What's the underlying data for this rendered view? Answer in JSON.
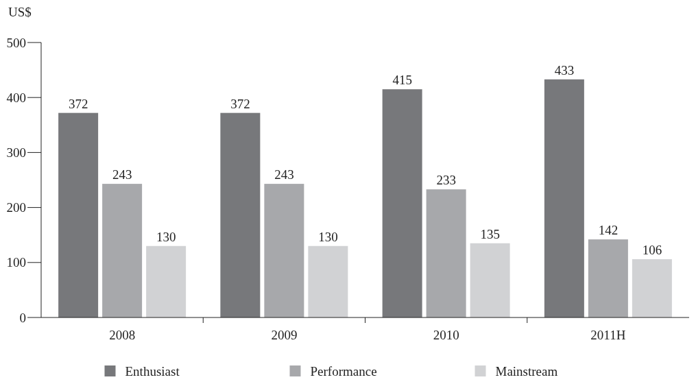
{
  "chart_data": {
    "type": "bar",
    "ylabel": "US$",
    "categories": [
      "2008",
      "2009",
      "2010",
      "2011H"
    ],
    "series": [
      {
        "name": "Enthusiast",
        "color": "#77787b",
        "values": [
          372,
          372,
          415,
          433
        ]
      },
      {
        "name": "Performance",
        "color": "#a7a8ab",
        "values": [
          243,
          243,
          233,
          142
        ]
      },
      {
        "name": "Mainstream",
        "color": "#d1d2d4",
        "values": [
          130,
          130,
          135,
          106
        ]
      }
    ],
    "ylim": [
      0,
      500
    ],
    "yticks": [
      0,
      100,
      200,
      300,
      400,
      500
    ],
    "data_labels": true,
    "legend": "bottom",
    "grid": false
  }
}
